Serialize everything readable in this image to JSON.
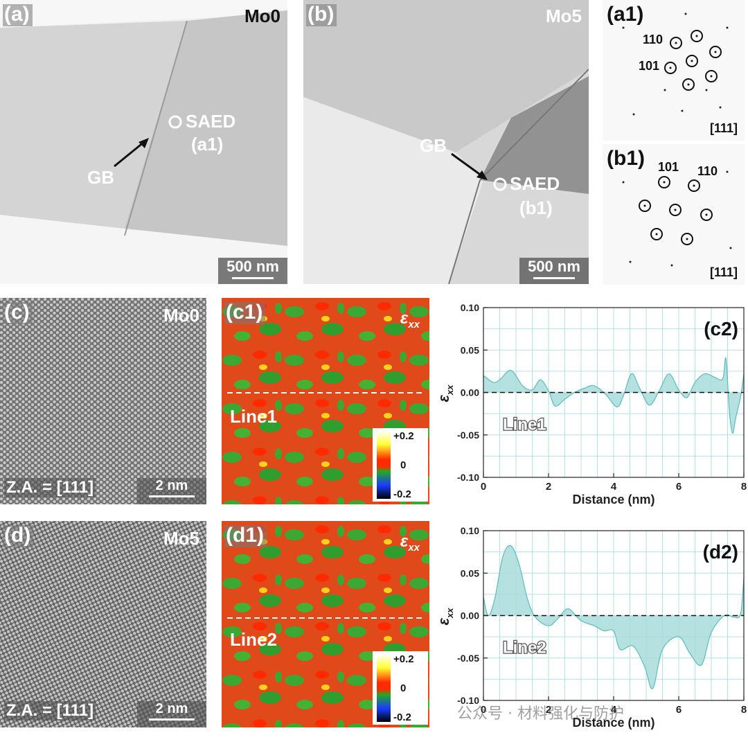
{
  "panel_a": {
    "label": "(a)",
    "sample": "Mo0",
    "gb": "GB",
    "saed": "SAED",
    "saed_ref": "(a1)",
    "scale": "500 nm"
  },
  "panel_b": {
    "label": "(b)",
    "sample": "Mo5",
    "gb": "GB",
    "saed": "SAED",
    "saed_ref": "(b1)",
    "scale": "500 nm"
  },
  "panel_a1": {
    "label": "(a1)",
    "index1": "110",
    "index2": "101",
    "zone": "[111]"
  },
  "panel_b1": {
    "label": "(b1)",
    "index1": "101",
    "index2": "110",
    "zone": "[111]"
  },
  "panel_c": {
    "label": "(c)",
    "sample": "Mo0",
    "za": "Z.A. = [111]",
    "scale": "2 nm"
  },
  "panel_d": {
    "label": "(d)",
    "sample": "Mo5",
    "za": "Z.A. = [111]",
    "scale": "2 nm"
  },
  "panel_c1": {
    "label": "(c1)",
    "strain_sym": "ε",
    "strain_sub": "xx",
    "line": "Line1",
    "cb_top": "+0.2",
    "cb_mid": "0",
    "cb_bot": "-0.2"
  },
  "panel_d1": {
    "label": "(d1)",
    "strain_sym": "ε",
    "strain_sub": "xx",
    "line": "Line2",
    "cb_top": "+0.2",
    "cb_mid": "0",
    "cb_bot": "-0.2"
  },
  "colors": {
    "fill": "#a9dcdc",
    "stroke": "#5bbcbc",
    "grid": "#b4e0df"
  },
  "watermark": "公众号 · 材料强化与防护",
  "chart_data": [
    {
      "type": "area",
      "panel": "(c2)",
      "annotation": "Line1",
      "xlabel": "Distance (nm)",
      "ylabel_sym": "ε",
      "ylabel_sub": "xx",
      "xlim": [
        0,
        8
      ],
      "ylim": [
        -0.1,
        0.1
      ],
      "xticks": [
        "0",
        "2",
        "4",
        "6",
        "8"
      ],
      "yticks": [
        "0.10",
        "0.05",
        "0.00",
        "-0.05",
        "-0.10"
      ],
      "x": [
        0,
        0.3,
        0.5,
        0.85,
        1.2,
        1.5,
        1.75,
        2.0,
        2.2,
        2.5,
        2.8,
        3.1,
        3.4,
        3.75,
        4.1,
        4.3,
        4.55,
        4.8,
        5.1,
        5.4,
        5.7,
        6.0,
        6.25,
        6.5,
        6.8,
        7.1,
        7.35,
        7.45,
        7.55,
        7.65,
        7.75,
        7.9,
        8.0
      ],
      "y": [
        0.02,
        0.012,
        0.015,
        0.026,
        0.008,
        0.003,
        0.015,
        0.002,
        -0.016,
        -0.008,
        0.0,
        0.005,
        0.008,
        -0.002,
        -0.017,
        -0.004,
        0.022,
        0.005,
        -0.015,
        0.002,
        0.022,
        0.003,
        -0.006,
        0.012,
        0.022,
        0.018,
        0.016,
        0.04,
        -0.02,
        -0.048,
        -0.03,
        -0.005,
        0.022
      ]
    },
    {
      "type": "area",
      "panel": "(d2)",
      "annotation": "Line2",
      "xlabel": "Distance (nm)",
      "ylabel_sym": "ε",
      "ylabel_sub": "xx",
      "xlim": [
        0,
        8
      ],
      "ylim": [
        -0.1,
        0.1
      ],
      "xticks": [
        "0",
        "2",
        "4",
        "6",
        "8"
      ],
      "yticks": [
        "0.10",
        "0.05",
        "0.00",
        "-0.05",
        "-0.10"
      ],
      "x": [
        0,
        0.15,
        0.35,
        0.6,
        0.85,
        1.1,
        1.35,
        1.6,
        2.0,
        2.3,
        2.6,
        3.0,
        3.4,
        3.7,
        4.0,
        4.2,
        4.6,
        4.95,
        5.2,
        5.5,
        6.0,
        6.35,
        6.7,
        7.0,
        7.4,
        7.7,
        7.9,
        8.0
      ],
      "y": [
        0.022,
        0.0,
        0.02,
        0.07,
        0.082,
        0.06,
        0.02,
        -0.002,
        -0.012,
        -0.003,
        0.008,
        -0.006,
        -0.012,
        -0.018,
        -0.018,
        -0.04,
        -0.036,
        -0.06,
        -0.086,
        -0.04,
        -0.025,
        -0.045,
        -0.058,
        -0.02,
        0.0,
        -0.002,
        0.002,
        0.045
      ]
    }
  ]
}
